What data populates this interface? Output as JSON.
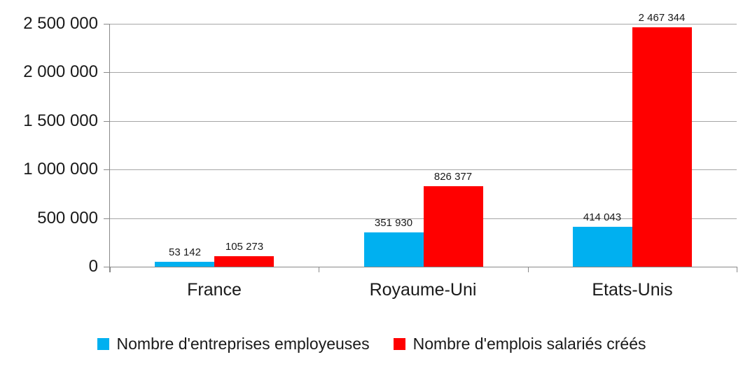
{
  "chart_data": {
    "type": "bar",
    "categories": [
      "France",
      "Royaume-Uni",
      "Etats-Unis"
    ],
    "series": [
      {
        "name": "Nombre d'entreprises employeuses",
        "color": "#00b0f0",
        "values": [
          53142,
          351930,
          414043
        ],
        "value_labels": [
          "53 142",
          "351 930",
          "414 043"
        ]
      },
      {
        "name": "Nombre d'emplois salariés créés",
        "color": "#ff0000",
        "values": [
          105273,
          826377,
          2467344
        ],
        "value_labels": [
          "105 273",
          "826 377",
          "2 467 344"
        ]
      }
    ],
    "title": "",
    "xlabel": "",
    "ylabel": "",
    "ylim": [
      0,
      2500000
    ],
    "ytick_interval": 500000,
    "ytick_labels": [
      "0",
      "500 000",
      "1 000 000",
      "1 500 000",
      "2 000 000",
      "2 500 000"
    ],
    "grid": true,
    "legend_position": "bottom"
  },
  "colors": {
    "gridline": "#a6a6a6",
    "axis": "#898989",
    "text": "#1a1a1a",
    "background": "#ffffff"
  }
}
